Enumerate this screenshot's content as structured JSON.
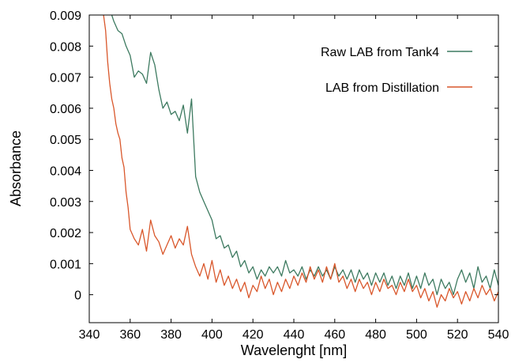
{
  "chart_data": {
    "type": "line",
    "title": "",
    "xlabel": "Wavelenght [nm]",
    "ylabel": "Absorbance",
    "xlim": [
      340,
      540
    ],
    "ylim": [
      -0.0009,
      0.009
    ],
    "x_ticks": [
      340,
      360,
      380,
      400,
      420,
      440,
      460,
      480,
      500,
      520,
      540
    ],
    "x_tick_labels": [
      "340",
      "360",
      "380",
      "400",
      "420",
      "440",
      "460",
      "480",
      "500",
      "520",
      "540"
    ],
    "y_ticks": [
      0,
      0.001,
      0.002,
      0.003,
      0.004,
      0.005,
      0.006,
      0.007,
      0.008,
      0.009
    ],
    "y_tick_labels": [
      "0",
      "0.001",
      "0.002",
      "0.003",
      "0.004",
      "0.005",
      "0.006",
      "0.007",
      "0.008",
      "0.009"
    ],
    "grid": false,
    "legend_position": "top-right",
    "series": [
      {
        "name": "Raw LAB from Tank4",
        "color": "#3d7a60",
        "x": [
          351,
          352,
          354,
          356,
          358,
          360,
          362,
          364,
          366,
          368,
          370,
          372,
          374,
          376,
          378,
          380,
          382,
          384,
          386,
          388,
          390,
          392,
          394,
          396,
          398,
          400,
          402,
          404,
          406,
          408,
          410,
          412,
          414,
          416,
          418,
          420,
          422,
          424,
          426,
          428,
          430,
          432,
          434,
          436,
          438,
          440,
          442,
          444,
          446,
          448,
          450,
          452,
          454,
          456,
          458,
          460,
          462,
          464,
          466,
          468,
          470,
          472,
          474,
          476,
          478,
          480,
          482,
          484,
          486,
          488,
          490,
          492,
          494,
          496,
          498,
          500,
          502,
          504,
          506,
          508,
          510,
          512,
          514,
          516,
          518,
          520,
          522,
          524,
          526,
          528,
          530,
          532,
          534,
          536,
          538,
          540
        ],
        "y": [
          0.009,
          0.0088,
          0.0085,
          0.0084,
          0.008,
          0.0077,
          0.007,
          0.0072,
          0.0071,
          0.0068,
          0.0078,
          0.0074,
          0.0066,
          0.006,
          0.0062,
          0.0058,
          0.0059,
          0.0056,
          0.0061,
          0.0052,
          0.0063,
          0.0038,
          0.0033,
          0.003,
          0.0027,
          0.0024,
          0.0018,
          0.0019,
          0.0015,
          0.0016,
          0.0012,
          0.0014,
          0.0009,
          0.0011,
          0.0007,
          0.0009,
          0.0005,
          0.0008,
          0.0006,
          0.0009,
          0.0007,
          0.0009,
          0.0006,
          0.0011,
          0.0007,
          0.0008,
          0.0006,
          0.0009,
          0.0005,
          0.0008,
          0.0006,
          0.0009,
          0.0006,
          0.0008,
          0.0005,
          0.0009,
          0.0006,
          0.0008,
          0.0005,
          0.0008,
          0.0004,
          0.0008,
          0.0005,
          0.0007,
          0.0003,
          0.0007,
          0.0004,
          0.0007,
          0.0003,
          0.0006,
          0.0002,
          0.0006,
          0.0003,
          0.0007,
          0.0002,
          0.0006,
          0.0002,
          0.0007,
          0.0003,
          0.0005,
          0.0,
          0.0005,
          0.0002,
          0.0004,
          0.0,
          0.0005,
          0.0008,
          0.0004,
          0.0007,
          0.0002,
          0.0009,
          0.0004,
          0.0006,
          0.0002,
          0.0008,
          0.0003
        ]
      },
      {
        "name": "LAB from Distillation",
        "color": "#d9572b",
        "x": [
          347,
          348,
          349,
          350,
          351,
          352,
          353,
          354,
          355,
          356,
          357,
          358,
          359,
          360,
          362,
          364,
          366,
          368,
          370,
          372,
          374,
          376,
          378,
          380,
          382,
          384,
          386,
          388,
          390,
          392,
          394,
          396,
          398,
          400,
          402,
          404,
          406,
          408,
          410,
          412,
          414,
          416,
          418,
          420,
          422,
          424,
          426,
          428,
          430,
          432,
          434,
          436,
          438,
          440,
          442,
          444,
          446,
          448,
          450,
          452,
          454,
          456,
          458,
          460,
          462,
          464,
          466,
          468,
          470,
          472,
          474,
          476,
          478,
          480,
          482,
          484,
          486,
          488,
          490,
          492,
          494,
          496,
          498,
          500,
          502,
          504,
          506,
          508,
          510,
          512,
          514,
          516,
          518,
          520,
          522,
          524,
          526,
          528,
          530,
          532,
          534,
          536,
          538,
          540
        ],
        "y": [
          0.009,
          0.0085,
          0.0075,
          0.0068,
          0.0063,
          0.006,
          0.0055,
          0.0052,
          0.005,
          0.0044,
          0.0041,
          0.0033,
          0.0028,
          0.0021,
          0.0018,
          0.0016,
          0.0021,
          0.0014,
          0.0024,
          0.0019,
          0.0017,
          0.0013,
          0.0016,
          0.0019,
          0.0015,
          0.0018,
          0.0016,
          0.0022,
          0.0013,
          0.0009,
          0.0006,
          0.001,
          0.0005,
          0.0011,
          0.0004,
          0.0008,
          0.0003,
          0.0006,
          0.0002,
          0.0005,
          0.0001,
          0.0004,
          -0.0001,
          0.0003,
          0.0001,
          0.0006,
          0.0002,
          0.0005,
          0.0,
          0.0004,
          0.0001,
          0.0005,
          0.0002,
          0.0006,
          0.0003,
          0.0007,
          0.0004,
          0.0009,
          0.0005,
          0.0008,
          0.0004,
          0.0009,
          0.0005,
          0.001,
          0.0004,
          0.0006,
          0.0002,
          0.0005,
          0.0001,
          0.0005,
          0.0002,
          0.0004,
          0.0,
          0.0004,
          0.0001,
          0.0005,
          0.0002,
          0.0003,
          0.0,
          0.0004,
          0.0001,
          0.0005,
          0.0001,
          0.0003,
          -0.0001,
          0.0002,
          -0.0002,
          0.0001,
          -0.0004,
          0.0,
          -0.0002,
          0.0002,
          -0.0001,
          0.0001,
          -0.0003,
          0.0001,
          -0.0002,
          0.0002,
          -0.0001,
          0.0003,
          0.0,
          0.0002,
          -0.0002,
          0.0001
        ]
      }
    ]
  }
}
